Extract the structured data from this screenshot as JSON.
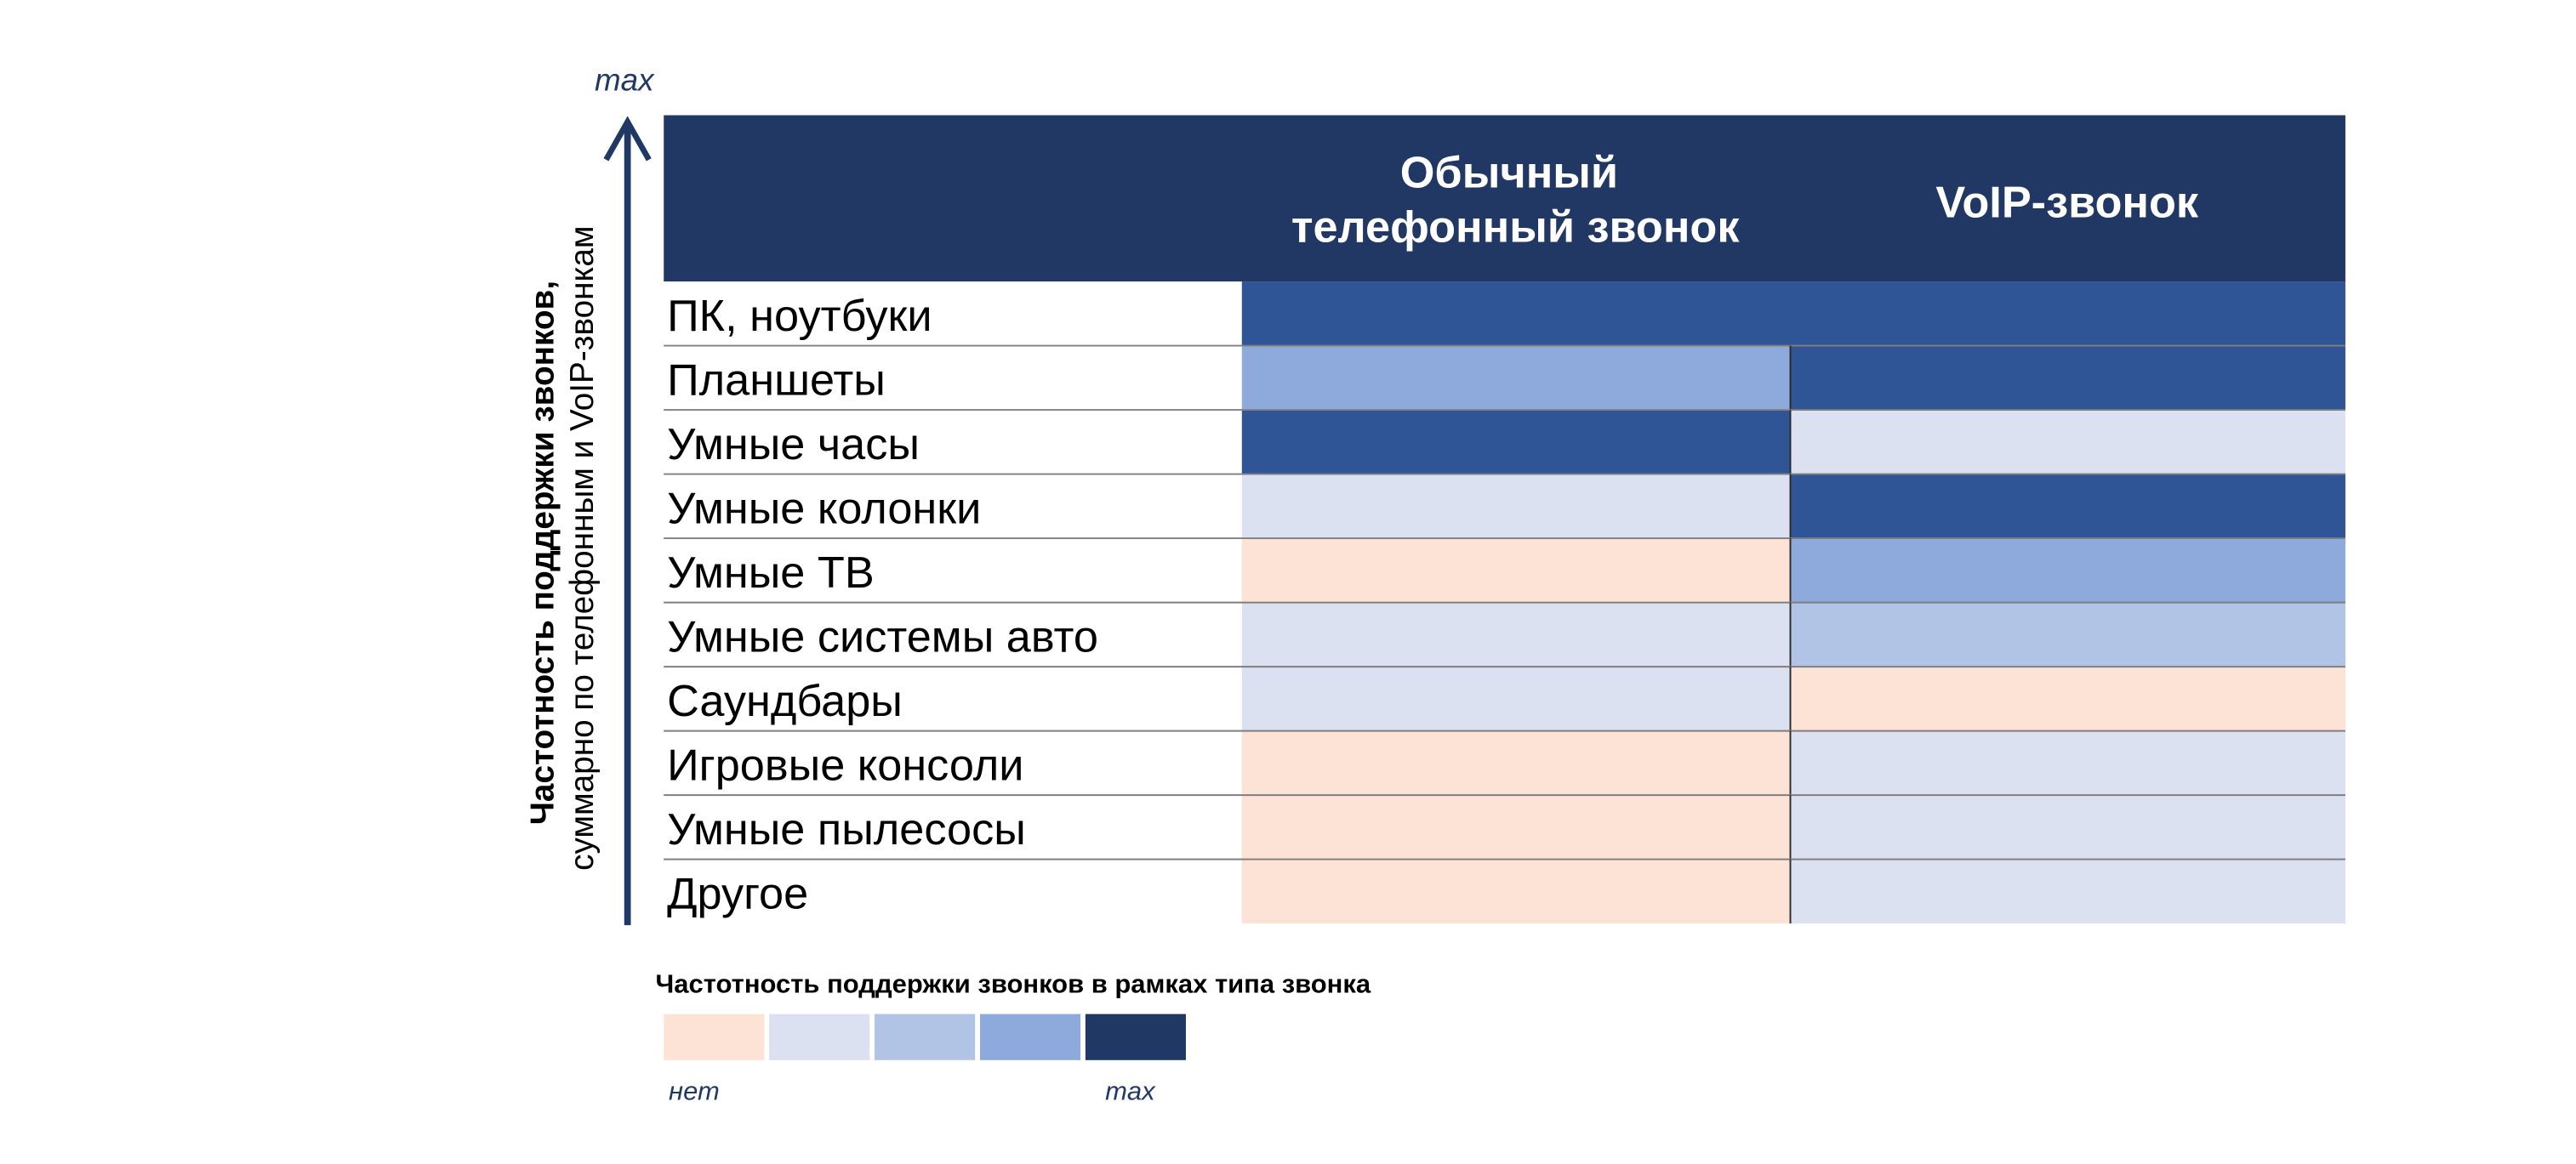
{
  "chart_data": {
    "type": "heatmap",
    "axis": {
      "label_bold": "Частотность поддержки звонков,",
      "label_normal": "суммарно по телефонным и VoIP-звонкам",
      "max_label": "max"
    },
    "columns": [
      [
        "Обычный",
        "телефонный звонок"
      ],
      [
        "VoIP-звонок"
      ]
    ],
    "rows": [
      "ПК, ноутбуки",
      "Планшеты",
      "Умные часы",
      "Умные колонки",
      "Умные ТВ",
      "Умные системы авто",
      "Саундбары",
      "Игровые консоли",
      "Умные пылесосы",
      "Другое"
    ],
    "values": [
      [
        4,
        4
      ],
      [
        3,
        4
      ],
      [
        4,
        1
      ],
      [
        1,
        4
      ],
      [
        0,
        3
      ],
      [
        1,
        2
      ],
      [
        1,
        0
      ],
      [
        0,
        1
      ],
      [
        0,
        1
      ],
      [
        0,
        1
      ]
    ],
    "merged_rows": [
      0
    ],
    "legend": {
      "title": "Частотность поддержки звонков в рамках типа звонка",
      "levels": [
        0,
        1,
        2,
        3,
        4
      ],
      "min_label": "нет",
      "max_label": "max"
    }
  },
  "colors": {
    "header_bg": "#223864",
    "cell_level": [
      "#fce3d6",
      "#dbe1f1",
      "#b2c4e6",
      "#8eaadc",
      "#2f5597"
    ],
    "legend_level": [
      "#fce3d6",
      "#dbe1f1",
      "#b2c4e6",
      "#8eaadc",
      "#203864"
    ],
    "axis": "#203864",
    "row_line": "#7f7f7f"
  }
}
